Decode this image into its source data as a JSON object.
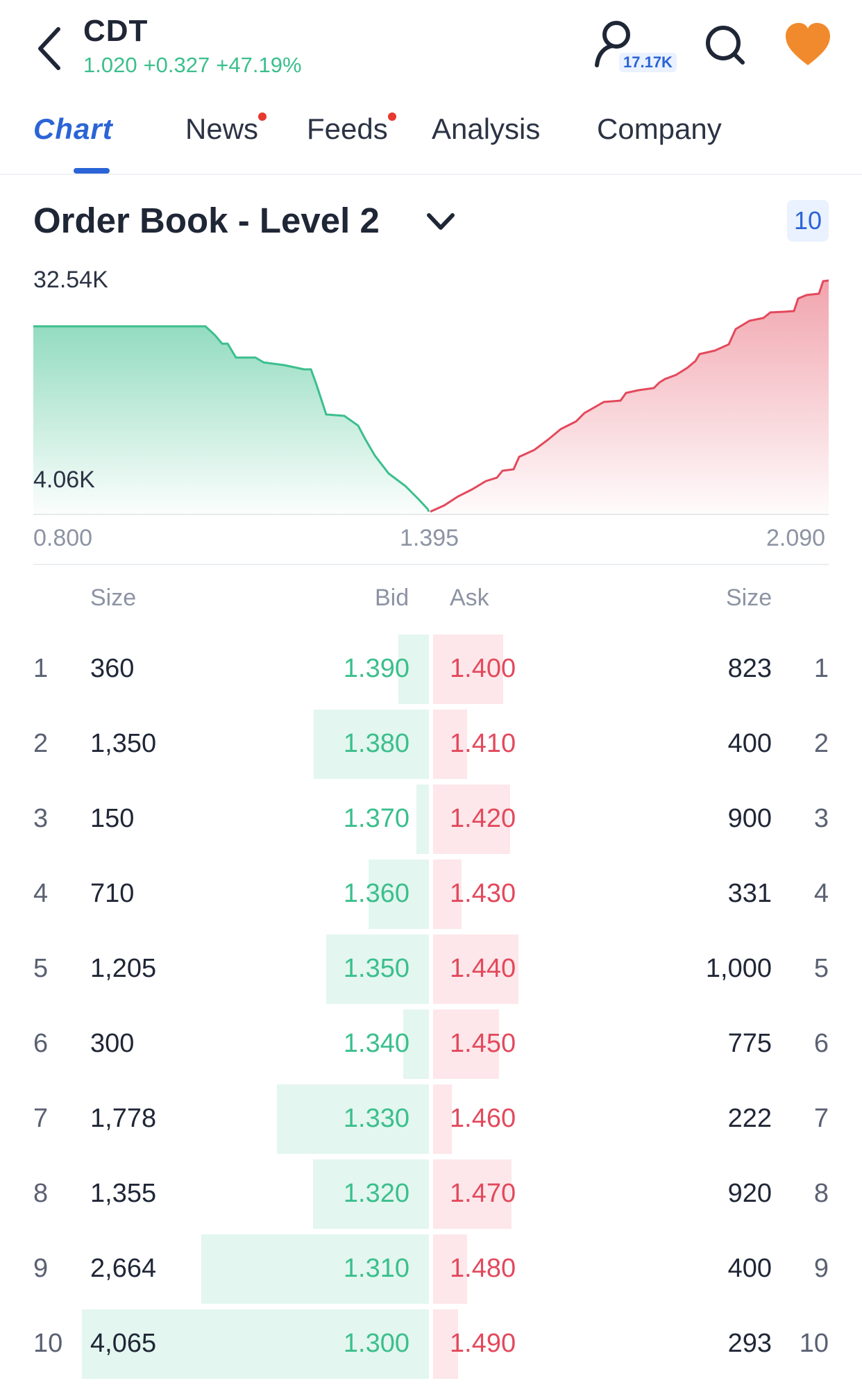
{
  "header": {
    "symbol": "CDT",
    "price": "1.020",
    "change": "+0.327",
    "change_pct": "+47.19%",
    "followers": "17.17K"
  },
  "tabs": [
    {
      "label": "Chart",
      "active": true,
      "dot": false
    },
    {
      "label": "News",
      "active": false,
      "dot": true
    },
    {
      "label": "Feeds",
      "active": false,
      "dot": true
    },
    {
      "label": "Analysis",
      "active": false,
      "dot": false
    },
    {
      "label": "Company",
      "active": false,
      "dot": false
    }
  ],
  "order_book": {
    "title": "Order Book - Level 2",
    "depth": "10",
    "chart": {
      "y_max_label": "32.54K",
      "y_min_label": "4.06K",
      "x_labels": [
        "0.800",
        "1.395",
        "2.090"
      ]
    },
    "columns": {
      "bid_size": "Size",
      "bid": "Bid",
      "ask": "Ask",
      "ask_size": "Size"
    },
    "rows": [
      {
        "n": "1",
        "bid_size": "360",
        "bid": "1.390",
        "ask": "1.400",
        "ask_size": "823"
      },
      {
        "n": "2",
        "bid_size": "1,350",
        "bid": "1.380",
        "ask": "1.410",
        "ask_size": "400"
      },
      {
        "n": "3",
        "bid_size": "150",
        "bid": "1.370",
        "ask": "1.420",
        "ask_size": "900"
      },
      {
        "n": "4",
        "bid_size": "710",
        "bid": "1.360",
        "ask": "1.430",
        "ask_size": "331"
      },
      {
        "n": "5",
        "bid_size": "1,205",
        "bid": "1.350",
        "ask": "1.440",
        "ask_size": "1,000"
      },
      {
        "n": "6",
        "bid_size": "300",
        "bid": "1.340",
        "ask": "1.450",
        "ask_size": "775"
      },
      {
        "n": "7",
        "bid_size": "1,778",
        "bid": "1.330",
        "ask": "1.460",
        "ask_size": "222"
      },
      {
        "n": "8",
        "bid_size": "1,355",
        "bid": "1.320",
        "ask": "1.470",
        "ask_size": "920"
      },
      {
        "n": "9",
        "bid_size": "2,664",
        "bid": "1.310",
        "ask": "1.480",
        "ask_size": "400"
      },
      {
        "n": "10",
        "bid_size": "4,065",
        "bid": "1.300",
        "ask": "1.490",
        "ask_size": "293"
      }
    ]
  },
  "colors": {
    "bid": "#3bbf8d",
    "ask": "#e3495c",
    "accent": "#2b64d6",
    "heart": "#f08a2c"
  }
}
